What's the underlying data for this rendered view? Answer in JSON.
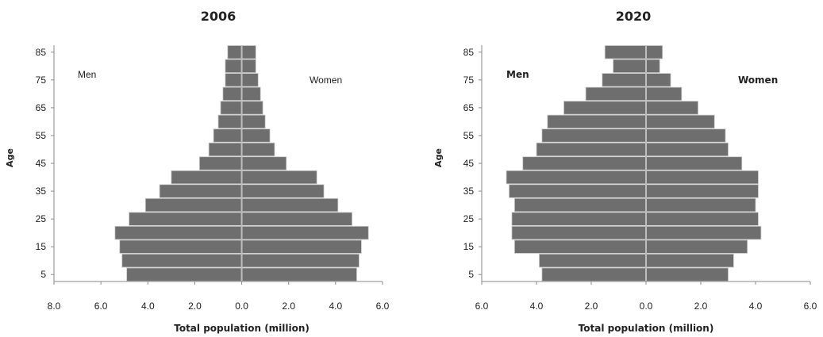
{
  "chart_data": [
    {
      "type": "bar",
      "orientation": "horizontal",
      "title": "2006",
      "xlabel": "Total population (million)",
      "ylabel": "Age",
      "xlim": [
        -8,
        6
      ],
      "x_ticks": [
        "8.0",
        "6.0",
        "4.0",
        "2.0",
        "0.0",
        "2.0",
        "4.0",
        "6.0"
      ],
      "y_ticks": [
        "5",
        "15",
        "25",
        "35",
        "45",
        "55",
        "65",
        "75",
        "85"
      ],
      "categories": [
        "5",
        "10",
        "15",
        "20",
        "25",
        "30",
        "35",
        "40",
        "45",
        "50",
        "55",
        "60",
        "65",
        "70",
        "75",
        "80",
        "85"
      ],
      "annotations": [
        "Men",
        "Women"
      ],
      "series": [
        {
          "name": "Men",
          "values": [
            4.9,
            5.1,
            5.2,
            5.4,
            4.8,
            4.1,
            3.5,
            3.0,
            1.8,
            1.4,
            1.2,
            1.0,
            0.9,
            0.8,
            0.7,
            0.7,
            0.6
          ]
        },
        {
          "name": "Women",
          "values": [
            4.9,
            5.0,
            5.1,
            5.4,
            4.7,
            4.1,
            3.5,
            3.2,
            1.9,
            1.4,
            1.2,
            1.0,
            0.9,
            0.8,
            0.7,
            0.6,
            0.6
          ]
        }
      ]
    },
    {
      "type": "bar",
      "orientation": "horizontal",
      "title": "2020",
      "xlabel": "Total population (million)",
      "ylabel": "Age",
      "xlim": [
        -6,
        6
      ],
      "x_ticks": [
        "6.0",
        "4.0",
        "2.0",
        "0.0",
        "2.0",
        "4.0",
        "6.0"
      ],
      "y_ticks": [
        "5",
        "15",
        "25",
        "35",
        "45",
        "55",
        "65",
        "75",
        "85"
      ],
      "categories": [
        "5",
        "10",
        "15",
        "20",
        "25",
        "30",
        "35",
        "40",
        "45",
        "50",
        "55",
        "60",
        "65",
        "70",
        "75",
        "80",
        "85"
      ],
      "annotations": [
        "Men",
        "Women"
      ],
      "series": [
        {
          "name": "Men",
          "values": [
            3.8,
            3.9,
            4.8,
            4.9,
            4.9,
            4.8,
            5.0,
            5.1,
            4.5,
            4.0,
            3.8,
            3.6,
            3.0,
            2.2,
            1.6,
            1.2,
            1.5
          ]
        },
        {
          "name": "Women",
          "values": [
            3.0,
            3.2,
            3.7,
            4.2,
            4.1,
            4.0,
            4.1,
            4.1,
            3.5,
            3.0,
            2.9,
            2.5,
            1.9,
            1.3,
            0.9,
            0.5,
            0.6
          ]
        }
      ]
    }
  ]
}
